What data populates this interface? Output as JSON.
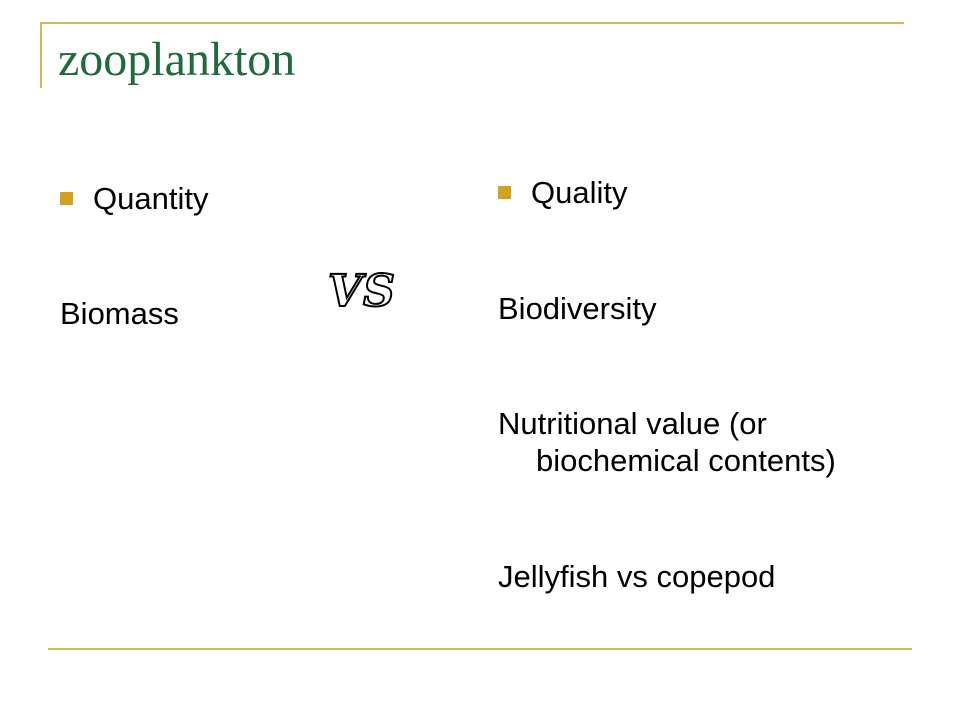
{
  "slide": {
    "title": "zooplankton",
    "left_column": {
      "bullet": "Quantity",
      "items": [
        "Biomass"
      ]
    },
    "vs_label": "VS",
    "right_column": {
      "bullet": "Quality",
      "items": [
        "Biodiversity",
        "Nutritional value (or biochemical contents)",
        "Jellyfish vs copepod"
      ]
    }
  },
  "colors": {
    "title": "#1f6b3a",
    "bullet": "#d1a21f",
    "rule": "#d1b85a"
  }
}
